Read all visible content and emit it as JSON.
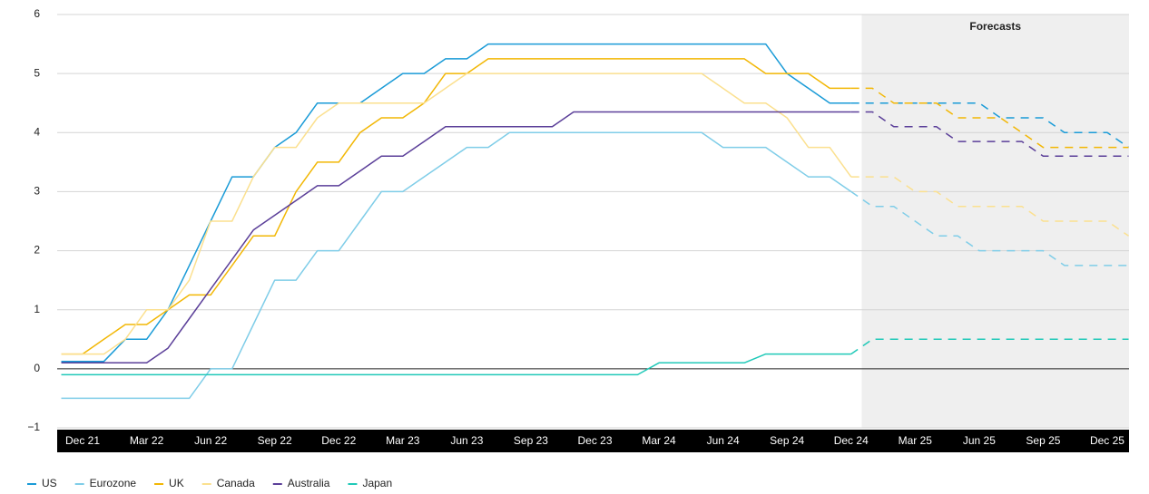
{
  "chart_data": {
    "type": "line",
    "categories": [
      null,
      "Dec 21",
      null,
      null,
      "Mar 22",
      null,
      null,
      "Jun 22",
      null,
      null,
      "Sep 22",
      null,
      null,
      "Dec 22",
      null,
      null,
      "Mar 23",
      null,
      null,
      "Jun 23",
      null,
      null,
      "Sep 23",
      null,
      null,
      "Dec 23",
      null,
      null,
      "Mar 24",
      null,
      null,
      "Jun 24",
      null,
      null,
      "Sep 24",
      null,
      null,
      "Dec 24",
      null,
      null,
      "Mar 25",
      null,
      null,
      "Jun 25",
      null,
      null,
      "Sep 25",
      null,
      null,
      "Dec 25",
      null
    ],
    "series": [
      {
        "name": "US",
        "color": "#1a9bd7",
        "values": [
          0.125,
          0.125,
          0.125,
          0.5,
          0.5,
          1.0,
          1.75,
          2.5,
          3.25,
          3.25,
          3.75,
          4.0,
          4.5,
          4.5,
          4.5,
          4.75,
          5.0,
          5.0,
          5.25,
          5.25,
          5.5,
          5.5,
          5.5,
          5.5,
          5.5,
          5.5,
          5.5,
          5.5,
          5.5,
          5.5,
          5.5,
          5.5,
          5.5,
          5.5,
          5.0,
          4.75,
          4.5,
          4.5,
          4.5,
          4.5,
          4.5,
          4.5,
          4.5,
          4.5,
          4.25,
          4.25,
          4.25,
          4.0,
          4.0,
          4.0,
          3.75
        ]
      },
      {
        "name": "Eurozone",
        "color": "#7fcde8",
        "values": [
          -0.5,
          -0.5,
          -0.5,
          -0.5,
          -0.5,
          -0.5,
          -0.5,
          0,
          0,
          0.75,
          1.5,
          1.5,
          2.0,
          2.0,
          2.5,
          3.0,
          3.0,
          3.25,
          3.5,
          3.75,
          3.75,
          4.0,
          4.0,
          4.0,
          4.0,
          4.0,
          4.0,
          4.0,
          4.0,
          4.0,
          4.0,
          3.75,
          3.75,
          3.75,
          3.5,
          3.25,
          3.25,
          3.0,
          2.75,
          2.75,
          2.5,
          2.25,
          2.25,
          2.0,
          2.0,
          2.0,
          2.0,
          1.75,
          1.75,
          1.75,
          1.75
        ]
      },
      {
        "name": "UK",
        "color": "#f2b705",
        "values": [
          0.25,
          0.25,
          0.5,
          0.75,
          0.75,
          1.0,
          1.25,
          1.25,
          1.75,
          2.25,
          2.25,
          3.0,
          3.5,
          3.5,
          4.0,
          4.25,
          4.25,
          4.5,
          5.0,
          5.0,
          5.25,
          5.25,
          5.25,
          5.25,
          5.25,
          5.25,
          5.25,
          5.25,
          5.25,
          5.25,
          5.25,
          5.25,
          5.25,
          5.0,
          5.0,
          5.0,
          4.75,
          4.75,
          4.75,
          4.5,
          4.5,
          4.5,
          4.25,
          4.25,
          4.25,
          4.0,
          3.75,
          3.75,
          3.75,
          3.75,
          3.75
        ]
      },
      {
        "name": "Canada",
        "color": "#fbe08f",
        "values": [
          0.25,
          0.25,
          0.25,
          0.5,
          1.0,
          1.0,
          1.5,
          2.5,
          2.5,
          3.25,
          3.75,
          3.75,
          4.25,
          4.5,
          4.5,
          4.5,
          4.5,
          4.5,
          4.75,
          5.0,
          5.0,
          5.0,
          5.0,
          5.0,
          5.0,
          5.0,
          5.0,
          5.0,
          5.0,
          5.0,
          5.0,
          4.75,
          4.5,
          4.5,
          4.25,
          3.75,
          3.75,
          3.25,
          3.25,
          3.25,
          3.0,
          3.0,
          2.75,
          2.75,
          2.75,
          2.75,
          2.5,
          2.5,
          2.5,
          2.5,
          2.25
        ]
      },
      {
        "name": "Australia",
        "color": "#5b3f99",
        "values": [
          0.1,
          0.1,
          0.1,
          0.1,
          0.1,
          0.35,
          0.85,
          1.35,
          1.85,
          2.35,
          2.6,
          2.85,
          3.1,
          3.1,
          3.35,
          3.6,
          3.6,
          3.85,
          4.1,
          4.1,
          4.1,
          4.1,
          4.1,
          4.1,
          4.35,
          4.35,
          4.35,
          4.35,
          4.35,
          4.35,
          4.35,
          4.35,
          4.35,
          4.35,
          4.35,
          4.35,
          4.35,
          4.35,
          4.35,
          4.1,
          4.1,
          4.1,
          3.85,
          3.85,
          3.85,
          3.85,
          3.6,
          3.6,
          3.6,
          3.6,
          3.6
        ]
      },
      {
        "name": "Japan",
        "color": "#20c9b8",
        "values": [
          -0.1,
          -0.1,
          -0.1,
          -0.1,
          -0.1,
          -0.1,
          -0.1,
          -0.1,
          -0.1,
          -0.1,
          -0.1,
          -0.1,
          -0.1,
          -0.1,
          -0.1,
          -0.1,
          -0.1,
          -0.1,
          -0.1,
          -0.1,
          -0.1,
          -0.1,
          -0.1,
          -0.1,
          -0.1,
          -0.1,
          -0.1,
          -0.1,
          0.1,
          0.1,
          0.1,
          0.1,
          0.1,
          0.25,
          0.25,
          0.25,
          0.25,
          0.25,
          0.5,
          0.5,
          0.5,
          0.5,
          0.5,
          0.5,
          0.5,
          0.5,
          0.5,
          0.5,
          0.5,
          0.5,
          0.5
        ]
      }
    ],
    "ylim": [
      -1,
      6
    ],
    "yticks": [
      {
        "value": -1,
        "label": "−1"
      },
      0,
      1,
      2,
      3,
      4,
      5,
      6
    ],
    "grid": true,
    "forecast": {
      "label": "Forecasts",
      "from": "Dec 24"
    },
    "legend": "bottom-left"
  }
}
